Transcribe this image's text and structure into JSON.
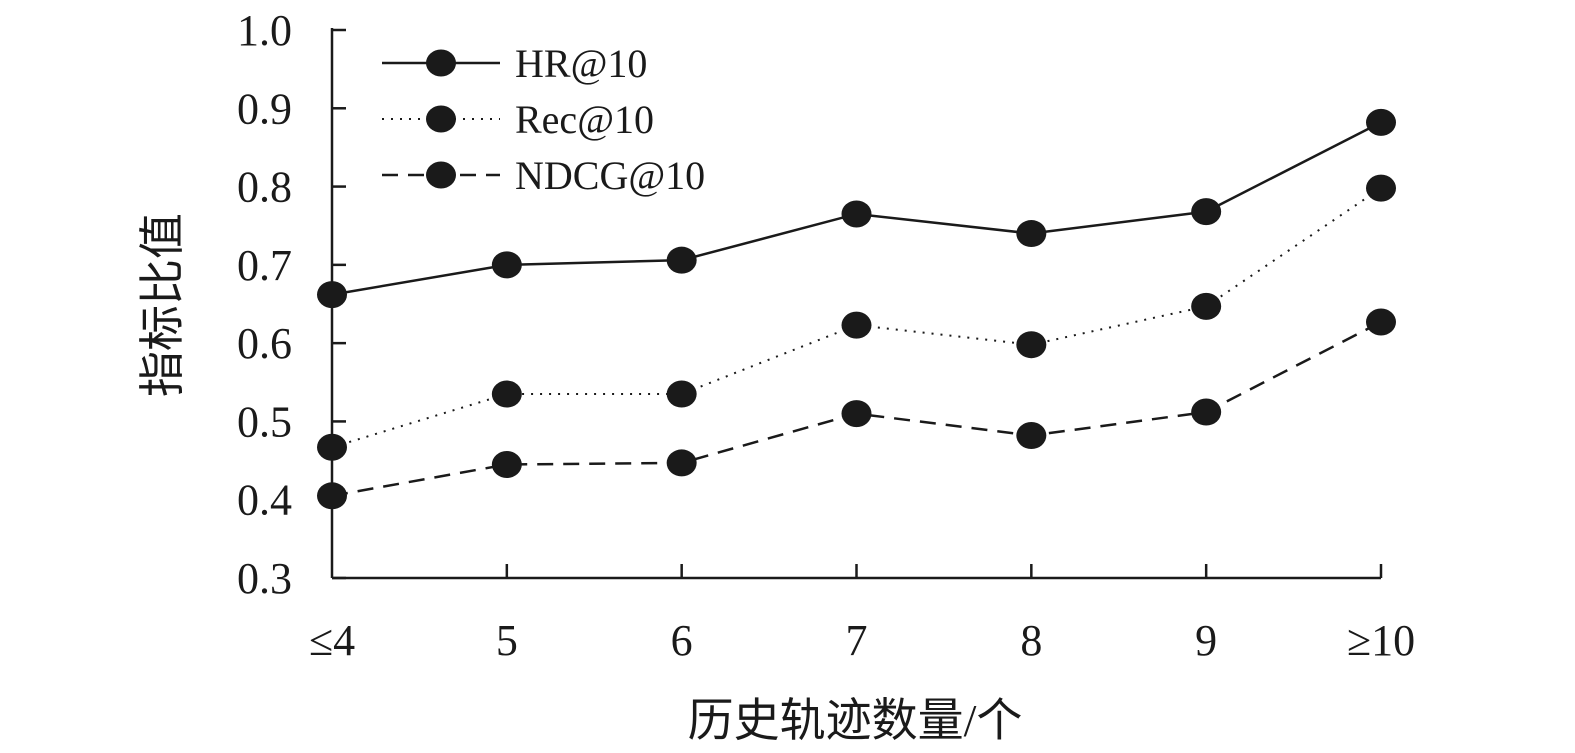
{
  "chart_data": {
    "type": "line",
    "categories": [
      "≤4",
      "5",
      "6",
      "7",
      "8",
      "9",
      "≥10"
    ],
    "series": [
      {
        "name": "HR@10",
        "values": [
          0.662,
          0.7,
          0.706,
          0.765,
          0.74,
          0.768,
          0.882
        ],
        "line_style": "solid"
      },
      {
        "name": "Rec@10",
        "values": [
          0.467,
          0.535,
          0.535,
          0.623,
          0.598,
          0.647,
          0.798
        ],
        "line_style": "dotted"
      },
      {
        "name": "NDCG@10",
        "values": [
          0.405,
          0.445,
          0.447,
          0.51,
          0.482,
          0.512,
          0.627
        ],
        "line_style": "dashed"
      }
    ],
    "xlabel": "历史轨迹数量/个",
    "ylabel": "指标比值",
    "ylim": [
      0.3,
      1.0
    ],
    "yticks": [
      "0.3",
      "0.4",
      "0.5",
      "0.6",
      "0.7",
      "0.8",
      "0.9",
      "1.0"
    ],
    "grid": false,
    "legend_position": "top-left",
    "colors": {
      "line": "#1a1a1a",
      "marker": "#1a1a1a"
    }
  }
}
